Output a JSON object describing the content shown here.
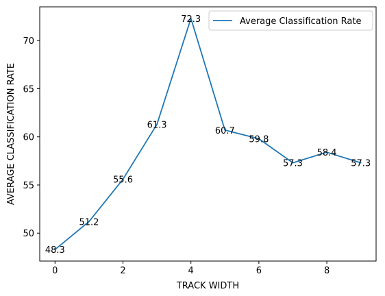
{
  "chart_data": {
    "type": "line",
    "title": "",
    "xlabel": "TRACK WIDTH",
    "ylabel": "AVERAGE CLASSIFICATION RATE",
    "x": [
      0,
      1,
      2,
      3,
      4,
      5,
      6,
      7,
      8,
      9
    ],
    "series": [
      {
        "name": "Average Classification Rate",
        "values": [
          48.3,
          51.2,
          55.6,
          61.3,
          72.3,
          60.7,
          59.8,
          57.3,
          58.4,
          57.3
        ],
        "labels": [
          "48.3",
          "51.2",
          "55.6",
          "61.3",
          "72.3",
          "60.7",
          "59.8",
          "57.3",
          "58.4",
          "57.3"
        ],
        "color": "#1f77b4"
      }
    ],
    "xlim": [
      -0.45,
      9.45
    ],
    "ylim": [
      47.1,
      73.5
    ],
    "xticks": [
      0,
      2,
      4,
      6,
      8
    ],
    "xtick_labels": [
      "0",
      "2",
      "4",
      "6",
      "8"
    ],
    "yticks": [
      50,
      55,
      60,
      65,
      70
    ],
    "ytick_labels": [
      "50",
      "55",
      "60",
      "65",
      "70"
    ],
    "grid": false,
    "legend_position": "upper-right"
  }
}
